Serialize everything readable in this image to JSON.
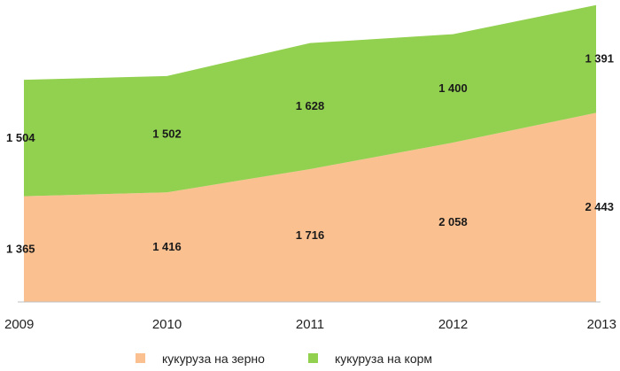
{
  "chart_data": {
    "type": "area",
    "stacked": true,
    "x": [
      "2009",
      "2010",
      "2011",
      "2012",
      "2013"
    ],
    "series": [
      {
        "name": "кукуруза на зерно",
        "values": [
          1365,
          1416,
          1716,
          2058,
          2443
        ],
        "labels": [
          "1 365",
          "1 416",
          "1 716",
          "2 058",
          "2 443"
        ],
        "color": "#fac090"
      },
      {
        "name": "кукуруза на корм",
        "values": [
          1504,
          1502,
          1628,
          1400,
          1391
        ],
        "labels": [
          "1 504",
          "1 502",
          "1 628",
          "1 400",
          "1 391"
        ],
        "color": "#92d050"
      }
    ],
    "ylim": [
      0,
      3900
    ],
    "grid": false,
    "legend": "bottom"
  }
}
